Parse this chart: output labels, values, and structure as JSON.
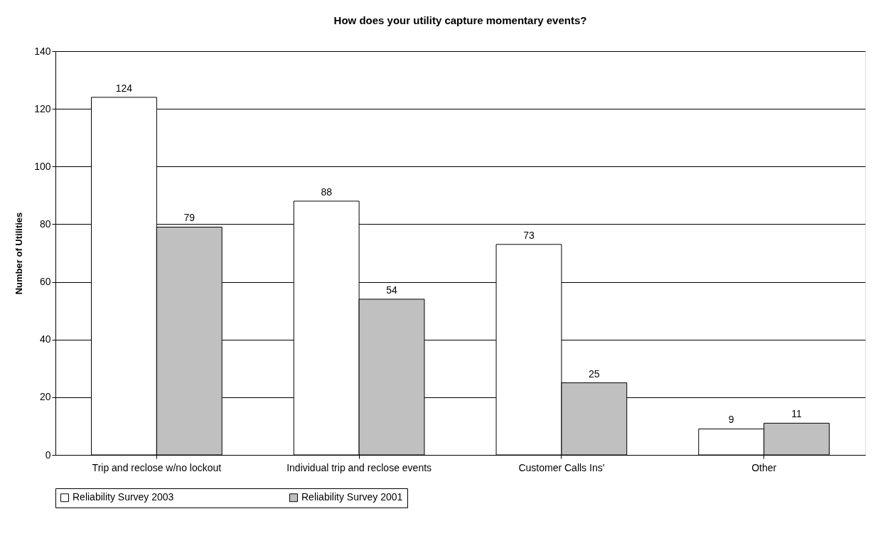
{
  "chart_data": {
    "type": "bar",
    "title": "How does your utility capture momentary events?",
    "ylabel": "Number of Utilities",
    "categories": [
      "Trip and reclose w/no lockout",
      "Individual trip and reclose events",
      "Customer Calls Ins'",
      "Other"
    ],
    "series": [
      {
        "name": "Reliability Survey 2003",
        "color": "#ffffff",
        "values": [
          124,
          88,
          73,
          9
        ]
      },
      {
        "name": "Reliability Survey 2001",
        "color": "#c0c0c0",
        "values": [
          79,
          54,
          25,
          11
        ]
      }
    ],
    "ylim": [
      0,
      140
    ],
    "yticks": [
      0,
      20,
      40,
      60,
      80,
      100,
      120,
      140
    ],
    "grid": "y",
    "legend": "bottom",
    "data_labels": true
  }
}
